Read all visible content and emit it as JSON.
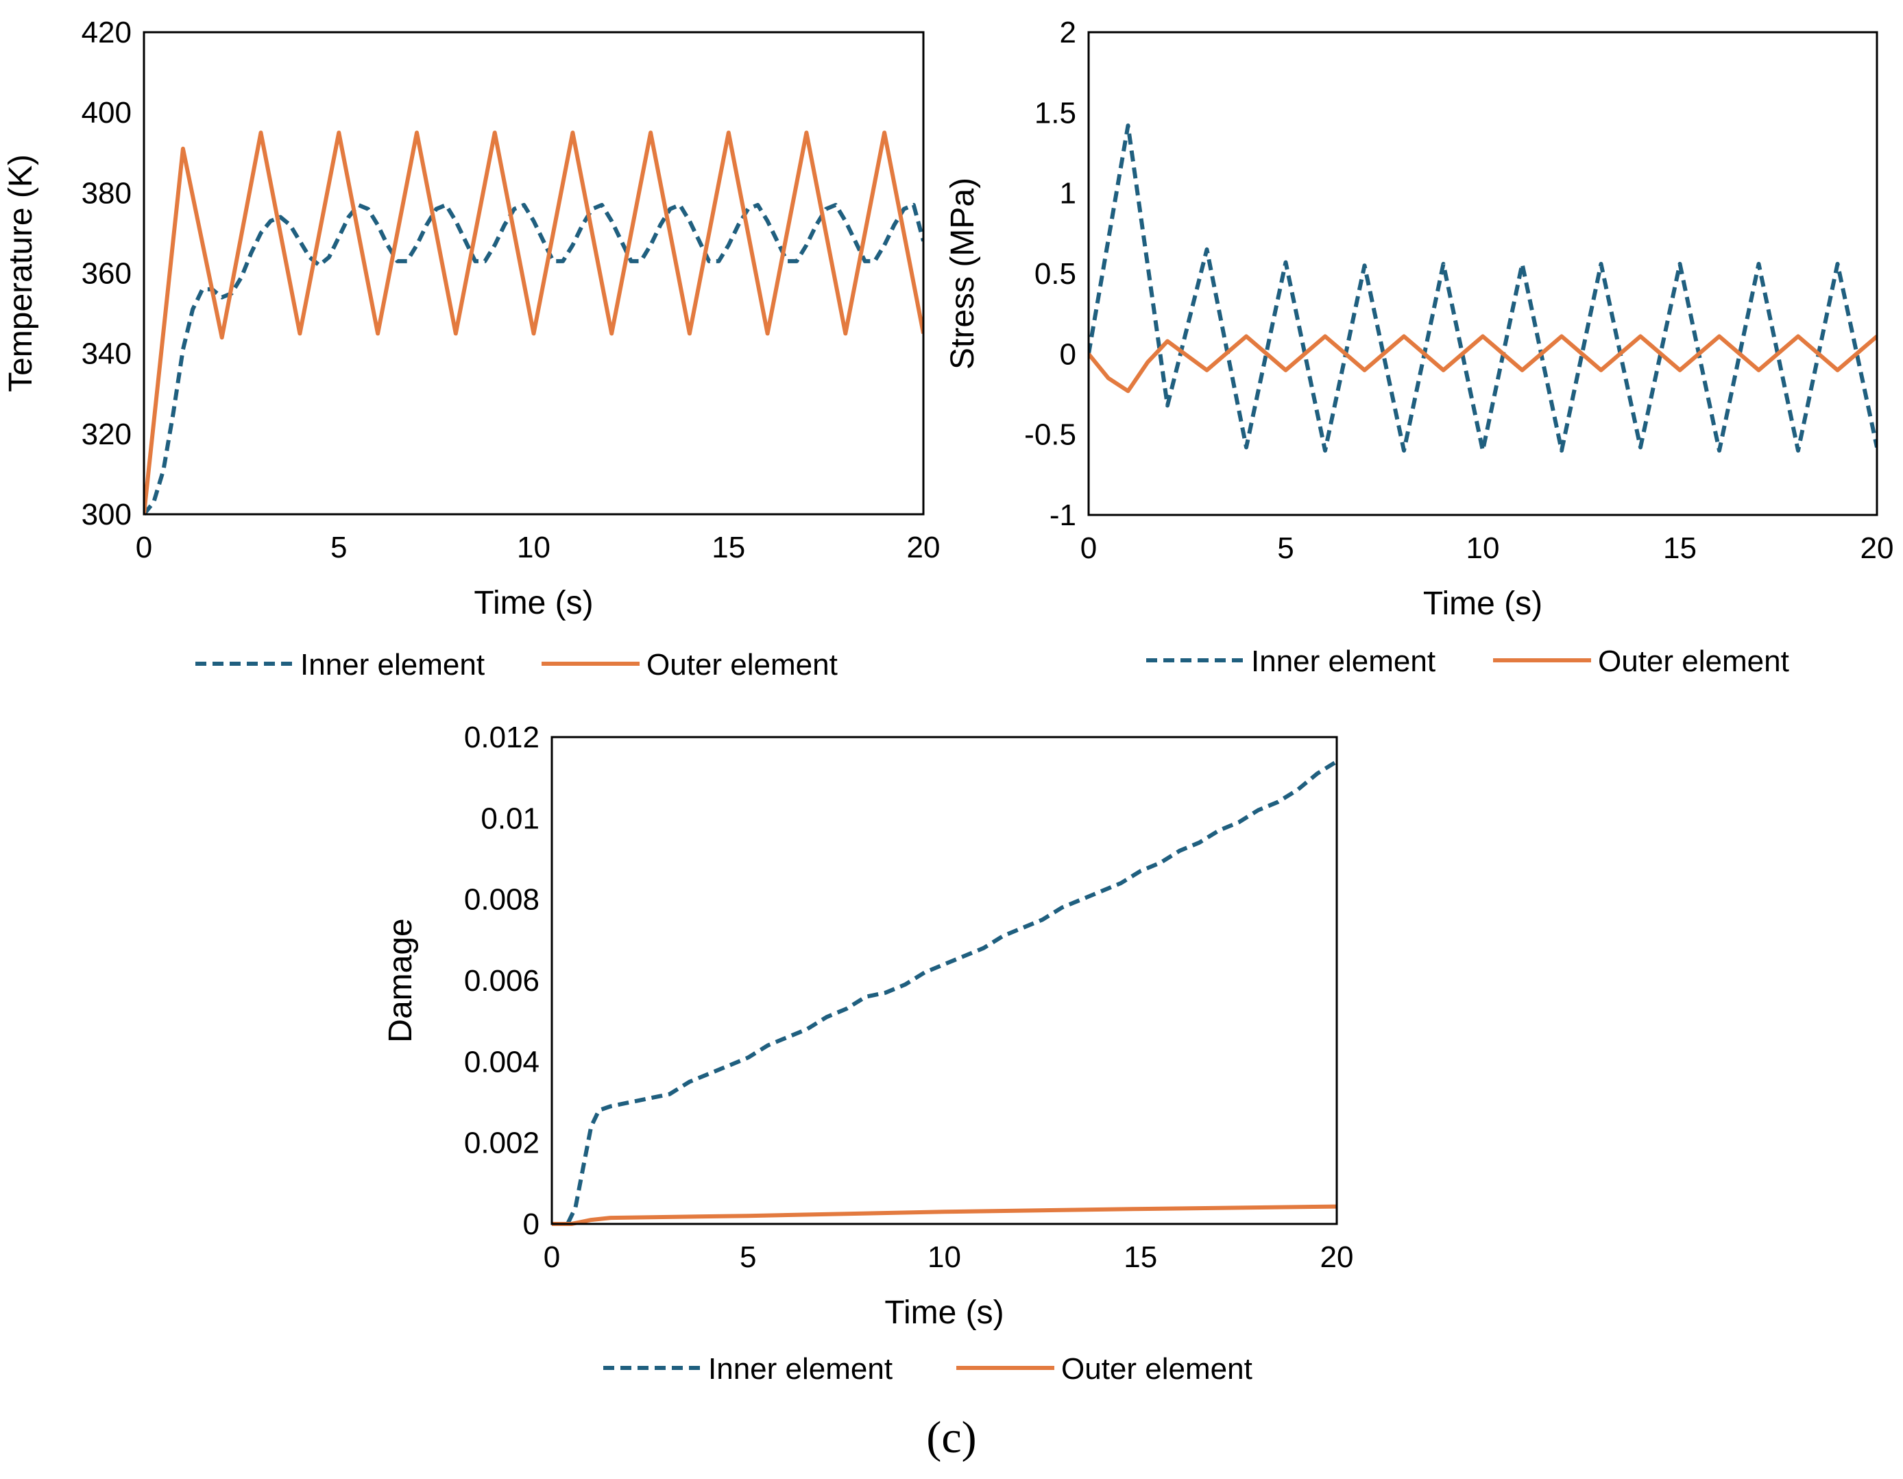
{
  "figure": {
    "caption": "(c)"
  },
  "colors": {
    "inner": "#1f5f7f",
    "outer": "#e37a3f",
    "axis": "#000000"
  },
  "chart_data": [
    {
      "type": "line",
      "id": "temperature",
      "title": "",
      "xlabel": "Time (s)",
      "ylabel": "Temperature (K)",
      "xlim": [
        0,
        20
      ],
      "ylim": [
        300,
        420
      ],
      "xticks": [
        0,
        5,
        10,
        15,
        20
      ],
      "yticks": [
        300,
        320,
        340,
        360,
        380,
        400,
        420
      ],
      "grid": false,
      "legend": "bottom",
      "series": [
        {
          "name": "Inner element",
          "style": "dashed",
          "x": [
            0,
            0.25,
            0.5,
            0.75,
            1,
            1.25,
            1.5,
            1.75,
            2,
            2.25,
            2.5,
            2.75,
            3,
            3.25,
            3.5,
            3.75,
            4,
            4.25,
            4.5,
            4.75,
            5,
            5.25,
            5.5,
            5.75,
            6,
            6.25,
            6.5,
            6.75,
            7,
            7.25,
            7.5,
            7.75,
            8,
            8.25,
            8.5,
            8.75,
            9,
            9.25,
            9.5,
            9.75,
            10,
            10.25,
            10.5,
            10.75,
            11,
            11.25,
            11.5,
            11.75,
            12,
            12.25,
            12.5,
            12.75,
            13,
            13.25,
            13.5,
            13.75,
            14,
            14.25,
            14.5,
            14.75,
            15,
            15.25,
            15.5,
            15.75,
            16,
            16.25,
            16.5,
            16.75,
            17,
            17.25,
            17.5,
            17.75,
            18,
            18.25,
            18.5,
            18.75,
            19,
            19.25,
            19.5,
            19.75,
            20
          ],
          "y": [
            300,
            303,
            311,
            325,
            341,
            351,
            356,
            356,
            354,
            355,
            359,
            365,
            370,
            373,
            374,
            372,
            368,
            364,
            362,
            364,
            369,
            374,
            377,
            376,
            372,
            367,
            363,
            363,
            367,
            372,
            376,
            377,
            373,
            368,
            363,
            363,
            367,
            372,
            376,
            377,
            373,
            368,
            363,
            363,
            367,
            372,
            376,
            377,
            373,
            368,
            363,
            363,
            367,
            372,
            376,
            377,
            373,
            368,
            363,
            363,
            367,
            372,
            376,
            377,
            373,
            368,
            363,
            363,
            367,
            372,
            376,
            377,
            373,
            368,
            363,
            363,
            367,
            372,
            376,
            377,
            368
          ]
        },
        {
          "name": "Outer element",
          "style": "solid",
          "x": [
            0,
            1,
            2,
            3,
            4,
            5,
            6,
            7,
            8,
            9,
            10,
            11,
            12,
            13,
            14,
            15,
            16,
            17,
            18,
            19,
            20
          ],
          "y": [
            300,
            391,
            344,
            395,
            345,
            395,
            345,
            395,
            345,
            395,
            345,
            395,
            345,
            395,
            345,
            395,
            345,
            395,
            345,
            395,
            345
          ]
        }
      ]
    },
    {
      "type": "line",
      "id": "stress",
      "title": "",
      "xlabel": "Time (s)",
      "ylabel": "Stress (MPa)",
      "xlim": [
        0,
        20
      ],
      "ylim": [
        -1,
        2
      ],
      "xticks": [
        0,
        5,
        10,
        15,
        20
      ],
      "yticks": [
        -1,
        -0.5,
        0,
        0.5,
        1,
        1.5,
        2
      ],
      "ytick_labels": [
        "-1",
        "-0.5",
        "0",
        "0.5",
        "1",
        "1.5",
        "2"
      ],
      "grid": false,
      "legend": "bottom",
      "series": [
        {
          "name": "Inner element",
          "style": "dashed",
          "x": [
            0,
            1,
            2,
            3,
            4,
            5,
            6,
            7,
            8,
            9,
            10,
            11,
            12,
            13,
            14,
            15,
            16,
            17,
            18,
            19,
            20
          ],
          "y": [
            0,
            1.42,
            -0.32,
            0.65,
            -0.58,
            0.57,
            -0.6,
            0.55,
            -0.6,
            0.56,
            -0.6,
            0.56,
            -0.6,
            0.56,
            -0.58,
            0.56,
            -0.6,
            0.56,
            -0.6,
            0.56,
            -0.58
          ]
        },
        {
          "name": "Outer element",
          "style": "solid",
          "x": [
            0,
            0.5,
            1,
            1.5,
            2,
            3,
            4,
            5,
            6,
            7,
            8,
            9,
            10,
            11,
            12,
            13,
            14,
            15,
            16,
            17,
            18,
            19,
            20
          ],
          "y": [
            0,
            -0.15,
            -0.23,
            -0.05,
            0.08,
            -0.1,
            0.11,
            -0.1,
            0.11,
            -0.1,
            0.11,
            -0.1,
            0.11,
            -0.1,
            0.11,
            -0.1,
            0.11,
            -0.1,
            0.11,
            -0.1,
            0.11,
            -0.1,
            0.11
          ]
        }
      ]
    },
    {
      "type": "line",
      "id": "damage",
      "title": "",
      "xlabel": "Time (s)",
      "ylabel": "Damage",
      "xlim": [
        0,
        20
      ],
      "ylim": [
        0,
        0.012
      ],
      "xticks": [
        0,
        5,
        10,
        15,
        20
      ],
      "yticks": [
        0,
        0.002,
        0.004,
        0.006,
        0.008,
        0.01,
        0.012
      ],
      "ytick_labels": [
        "0",
        "0.002",
        "0.004",
        "0.006",
        "0.008",
        "0.01",
        "0.012"
      ],
      "grid": false,
      "legend": "bottom",
      "series": [
        {
          "name": "Inner element",
          "style": "dashed",
          "x": [
            0,
            0.4,
            0.6,
            0.8,
            1.0,
            1.2,
            1.5,
            2,
            2.5,
            3,
            3.5,
            4,
            4.5,
            5,
            5.5,
            6,
            6.5,
            7,
            7.5,
            8,
            8.5,
            9,
            9.5,
            10,
            10.5,
            11,
            11.5,
            12,
            12.5,
            13,
            13.5,
            14,
            14.5,
            15,
            15.5,
            16,
            16.5,
            17,
            17.5,
            18,
            18.5,
            19,
            19.5,
            20
          ],
          "y": [
            0,
            0,
            0.0004,
            0.0014,
            0.0024,
            0.0028,
            0.0029,
            0.003,
            0.0031,
            0.0032,
            0.0035,
            0.0037,
            0.0039,
            0.0041,
            0.0044,
            0.0046,
            0.0048,
            0.0051,
            0.0053,
            0.0056,
            0.0057,
            0.0059,
            0.0062,
            0.0064,
            0.0066,
            0.0068,
            0.0071,
            0.0073,
            0.0075,
            0.0078,
            0.008,
            0.0082,
            0.0084,
            0.0087,
            0.0089,
            0.0092,
            0.0094,
            0.0097,
            0.0099,
            0.0102,
            0.0104,
            0.0107,
            0.0111,
            0.0114
          ]
        },
        {
          "name": "Outer element",
          "style": "solid",
          "x": [
            0,
            0.5,
            1,
            1.5,
            5,
            10,
            15,
            20
          ],
          "y": [
            0,
            0,
            0.0001,
            0.00015,
            0.0002,
            0.0003,
            0.00037,
            0.00043
          ]
        }
      ]
    }
  ]
}
